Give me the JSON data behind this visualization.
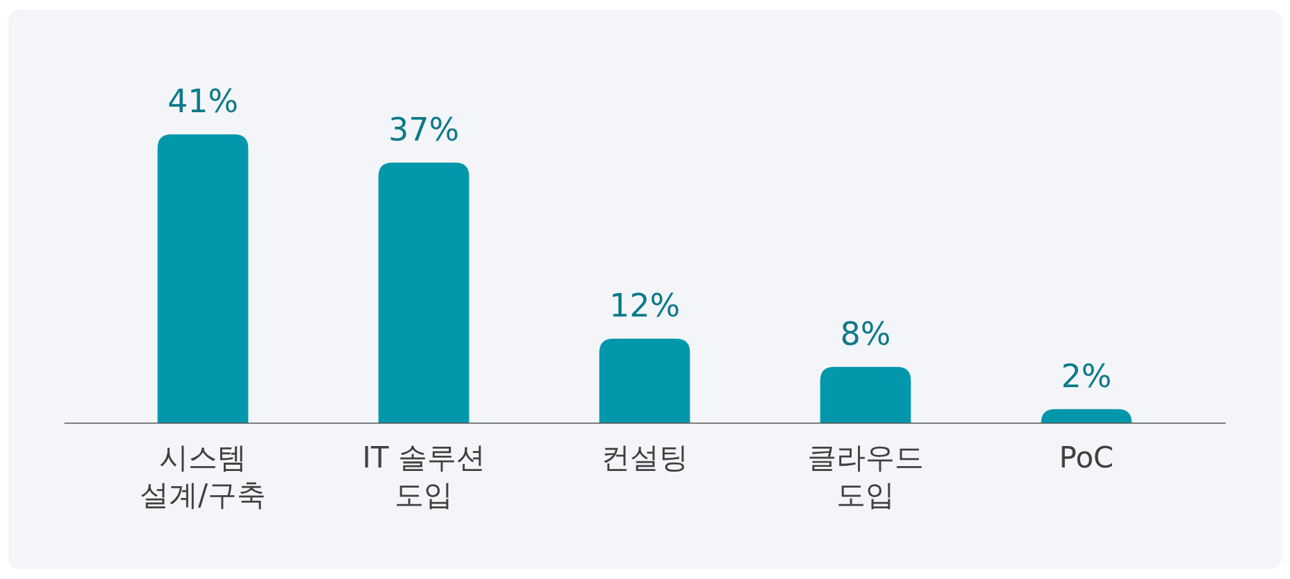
{
  "chart_data": {
    "type": "bar",
    "categories": [
      "시스템\n설계/구축",
      "IT 솔루션\n도입",
      "컨설팅",
      "클라우드\n도입",
      "PoC"
    ],
    "values": [
      41,
      37,
      12,
      8,
      2
    ],
    "value_labels": [
      "41%",
      "37%",
      "12%",
      "8%",
      "2%"
    ],
    "color": "#0397ab"
  }
}
